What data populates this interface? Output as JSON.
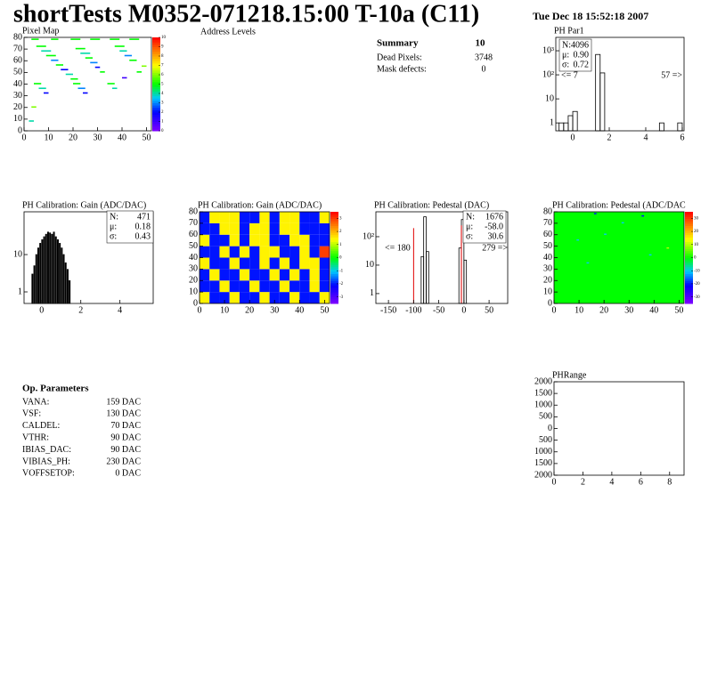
{
  "header": {
    "title": "shortTests M0352-071218.15:00 T-10a (C11)",
    "date": "Tue Dec 18 15:52:18 2007"
  },
  "summary": {
    "title": "Summary",
    "count": "10",
    "rows": [
      [
        "Dead Pixels:",
        "3748"
      ],
      [
        "Mask defects:",
        "0"
      ]
    ]
  },
  "op_parameters": {
    "title": "Op. Parameters",
    "rows": [
      [
        "VANA:",
        "159 DAC"
      ],
      [
        "VSF:",
        "130 DAC"
      ],
      [
        "CALDEL:",
        "70 DAC"
      ],
      [
        "VTHR:",
        "90 DAC"
      ],
      [
        "IBIAS_DAC:",
        "90 DAC"
      ],
      [
        "VIBIAS_PH:",
        "230 DAC"
      ],
      [
        "VOFFSETOP:",
        "0 DAC"
      ]
    ]
  },
  "chart_data": [
    {
      "type": "heatmap",
      "title": "Pixel Map",
      "xlim": [
        0,
        52
      ],
      "ylim": [
        0,
        80
      ],
      "xticks": [
        0,
        10,
        20,
        30,
        40,
        50
      ],
      "yticks": [
        0,
        10,
        20,
        30,
        40,
        50,
        60,
        70,
        80
      ],
      "zlim": [
        0,
        10
      ],
      "zticks": [
        0,
        1,
        2,
        3,
        4,
        5,
        6,
        7,
        8,
        9,
        10
      ],
      "segments": {
        "x_start": [
          3,
          11,
          19,
          27,
          35,
          43,
          5,
          7,
          9,
          11,
          13,
          15,
          17,
          19,
          21,
          23,
          25,
          27,
          29,
          31,
          37,
          39,
          41,
          43,
          4,
          6,
          8,
          20,
          22,
          24,
          34,
          36,
          3,
          2,
          40,
          46,
          48
        ],
        "x_end": [
          6,
          14,
          23,
          31,
          39,
          47,
          9,
          11,
          13,
          14,
          16,
          18,
          20,
          22,
          25,
          27,
          28,
          30,
          31,
          33,
          41,
          42,
          44,
          46,
          7,
          9,
          10,
          23,
          25,
          26,
          37,
          38,
          5,
          4,
          42,
          48,
          50
        ],
        "y": [
          78,
          78,
          78,
          78,
          78,
          78,
          72,
          68,
          64,
          60,
          56,
          52,
          48,
          44,
          70,
          66,
          62,
          58,
          54,
          50,
          72,
          68,
          64,
          60,
          40,
          36,
          32,
          40,
          36,
          32,
          40,
          36,
          20,
          8,
          45,
          50,
          55
        ],
        "values": [
          5,
          5,
          5,
          5,
          5,
          5,
          5,
          4,
          5,
          3,
          5,
          2,
          4,
          5,
          5,
          4,
          5,
          3,
          2,
          5,
          5,
          4,
          3,
          5,
          5,
          4,
          2,
          5,
          3,
          2,
          5,
          4,
          6,
          4,
          1,
          5,
          6
        ]
      }
    },
    {
      "type": "empty",
      "title": "Address Levels"
    },
    {
      "type": "histogram",
      "title": "PH Par1",
      "log_y": true,
      "filled": false,
      "color": "#000000",
      "xlim": [
        -0.93,
        6.1
      ],
      "xticks": [
        0,
        2,
        4,
        6
      ],
      "ylim": [
        0.47,
        3600
      ],
      "yticks": [
        1,
        10,
        {
          "value": 100,
          "label": "10²"
        },
        {
          "value": 1000,
          "label": "10³"
        }
      ],
      "bins": [
        -0.75,
        -0.5,
        -0.25,
        0,
        0.25,
        0.5,
        0.75,
        1,
        1.25,
        1.5,
        1.75,
        2,
        2.25,
        2.5,
        2.75,
        3,
        3.25,
        3.5,
        3.75,
        4,
        4.25,
        4.5,
        4.75,
        5,
        5.25,
        5.5,
        5.75,
        6
      ],
      "counts": [
        1,
        1,
        2,
        3,
        0,
        0,
        0,
        0,
        700,
        120,
        0,
        0,
        0,
        0,
        0,
        0,
        0,
        0,
        0,
        0,
        0,
        0,
        1,
        0,
        0,
        0,
        1
      ],
      "stats": [
        {
          "label": "N:",
          "value": "4096"
        },
        {
          "label": "μ:",
          "value": "0.90"
        },
        {
          "label": "σ:",
          "value": "0.72"
        }
      ],
      "annotations": [
        "<= 7",
        "57 =>"
      ]
    },
    {
      "type": "histogram",
      "title": "PH Calibration: Gain (ADC/DAC)",
      "log_y": true,
      "filled": true,
      "color": "#000000",
      "xlim": [
        -0.9,
        5.7
      ],
      "xticks": [
        0,
        2,
        4
      ],
      "ylim": [
        0.49,
        140
      ],
      "yticks": [
        1,
        10
      ],
      "bins": [
        -0.5,
        -0.4,
        -0.3,
        -0.2,
        -0.1,
        0,
        0.1,
        0.2,
        0.3,
        0.4,
        0.5,
        0.6,
        0.7,
        0.8,
        0.9,
        1,
        1.1,
        1.2,
        1.3,
        1.4,
        1.5
      ],
      "counts": [
        3,
        5,
        10,
        15,
        20,
        25,
        30,
        35,
        40,
        38,
        35,
        40,
        30,
        25,
        20,
        15,
        10,
        6,
        4,
        2
      ],
      "stats": [
        {
          "label": "N:",
          "value": "471"
        },
        {
          "label": "μ:",
          "value": "0.18"
        },
        {
          "label": "σ:",
          "value": "0.43"
        }
      ]
    },
    {
      "type": "heatmap",
      "title": "PH Calibration: Gain (ADC/DAC)",
      "xlim": [
        0,
        52
      ],
      "ylim": [
        0,
        80
      ],
      "xticks": [
        0,
        10,
        20,
        30,
        40,
        50
      ],
      "yticks": [
        0,
        10,
        20,
        30,
        40,
        50,
        60,
        70,
        80
      ],
      "zlim": [
        -3.5,
        3.5
      ],
      "zticks": [
        -3,
        -2,
        -1,
        0,
        1,
        2,
        3
      ],
      "xbins": [
        0,
        4,
        8,
        12,
        16,
        20,
        24,
        28,
        32,
        36,
        40,
        44,
        48,
        52
      ],
      "ybins": [
        0,
        10,
        20,
        30,
        40,
        50,
        60,
        70,
        80
      ],
      "z": [
        [
          1.5,
          -2,
          -2,
          1.5,
          -2,
          -2,
          1.5,
          -2,
          -2,
          1.5,
          -2,
          -2,
          1.5
        ],
        [
          -2,
          -2,
          1.5,
          -2,
          -2,
          1.5,
          -2,
          -2,
          1.5,
          -2,
          -2,
          1.5,
          -2
        ],
        [
          -2,
          1.5,
          -2,
          -2,
          1.5,
          -2,
          -2,
          1.5,
          -2,
          1.5,
          -2,
          1.5,
          -2
        ],
        [
          1.5,
          -2,
          -2,
          1.5,
          -2,
          -2,
          1.5,
          -2,
          1.5,
          -2,
          1.5,
          1.5,
          -2
        ],
        [
          -2,
          -2,
          1.5,
          -2,
          1.5,
          -2,
          1.5,
          1.5,
          -2,
          -2,
          1.5,
          -2,
          3
        ],
        [
          1.5,
          -2,
          -2,
          1.5,
          -2,
          1.5,
          1.5,
          -2,
          -2,
          1.5,
          1.5,
          -2,
          -2
        ],
        [
          -2,
          -2,
          1.5,
          1.5,
          -2,
          1.5,
          1.5,
          -2,
          1.5,
          1.5,
          -2,
          -2,
          -2
        ],
        [
          -2,
          1.5,
          1.5,
          1.5,
          -2,
          -2,
          1.5,
          -2,
          1.5,
          1.5,
          -2,
          -2,
          1.5
        ]
      ]
    },
    {
      "type": "histogram",
      "title": "PH Calibration: Pedestal (DAC)",
      "log_y": true,
      "filled": false,
      "color": "#000000",
      "xlim": [
        -175,
        87
      ],
      "xticks": [
        -150,
        -100,
        -50,
        0,
        50
      ],
      "ylim": [
        0.45,
        750
      ],
      "yticks": [
        1,
        10,
        {
          "value": 100,
          "label": "10²"
        }
      ],
      "bins": [
        -175,
        -170,
        -165,
        -160,
        -155,
        -150,
        -145,
        -140,
        -135,
        -130,
        -125,
        -120,
        -115,
        -110,
        -105,
        -100,
        -95,
        -90,
        -85,
        -80,
        -75,
        -70,
        -65,
        -60,
        -55,
        -50,
        -45,
        -40,
        -35,
        -30,
        -25,
        -20,
        -15,
        -10,
        -5,
        0,
        5,
        10,
        15,
        20,
        25,
        30,
        35,
        40,
        45,
        50,
        55,
        60,
        65,
        70,
        75,
        80,
        85
      ],
      "counts": [
        0,
        0,
        0,
        0,
        0,
        0,
        0,
        0,
        0,
        0,
        0,
        0,
        0,
        0,
        0,
        0,
        0,
        0,
        20,
        500,
        30,
        0,
        0,
        0,
        0,
        0,
        0,
        0,
        0,
        0,
        0,
        0,
        0,
        40,
        400,
        15,
        0,
        0,
        0,
        0,
        0,
        0,
        0,
        0,
        0,
        0,
        0,
        0,
        0,
        0,
        0,
        0
      ],
      "fit_lines": {
        "color": "#e00000",
        "x": [
          -100,
          -5
        ],
        "y": [
          200,
          250
        ]
      },
      "stats": [
        {
          "label": "N:",
          "value": "1676"
        },
        {
          "label": "μ:",
          "value": "-58.0",
          "color": "#e00000"
        },
        {
          "label": "σ:",
          "value": "30.6",
          "color": "#e00000"
        }
      ],
      "annotations": [
        "<= 180",
        "279 =>"
      ]
    },
    {
      "type": "heatmap",
      "title": "PH Calibration: Pedestal (ADC/DAC",
      "xlim": [
        0,
        52
      ],
      "ylim": [
        0,
        80
      ],
      "xticks": [
        0,
        10,
        20,
        30,
        40,
        50
      ],
      "yticks": [
        0,
        10,
        20,
        30,
        40,
        50,
        60,
        70,
        80
      ],
      "zlim": [
        -35,
        35
      ],
      "zticks": [
        -30,
        -20,
        -10,
        0,
        10,
        20,
        30
      ],
      "xbins": [
        0,
        52
      ],
      "ybins": [
        0,
        80
      ],
      "z": [
        [
          0
        ]
      ],
      "points": {
        "x": [
          16,
          35,
          27,
          20,
          9,
          45,
          38,
          13
        ],
        "y": [
          78,
          76,
          70,
          60,
          55,
          48,
          42,
          35
        ],
        "values": [
          -20,
          -20,
          -10,
          -10,
          -10,
          10,
          -10,
          -10
        ]
      }
    },
    {
      "type": "empty_axes",
      "title": "PHRange",
      "xlim": [
        0,
        9
      ],
      "xticks": [
        0,
        2,
        4,
        6,
        8
      ],
      "ylim": [
        -2000,
        2000
      ],
      "yticks": [
        2000,
        1500,
        1000,
        500,
        0,
        {
          "value": -500,
          "label": "500"
        },
        {
          "value": -1000,
          "label": "1000"
        },
        {
          "value": -1500,
          "label": "1500"
        },
        {
          "value": -2000,
          "label": "2000"
        }
      ]
    }
  ]
}
